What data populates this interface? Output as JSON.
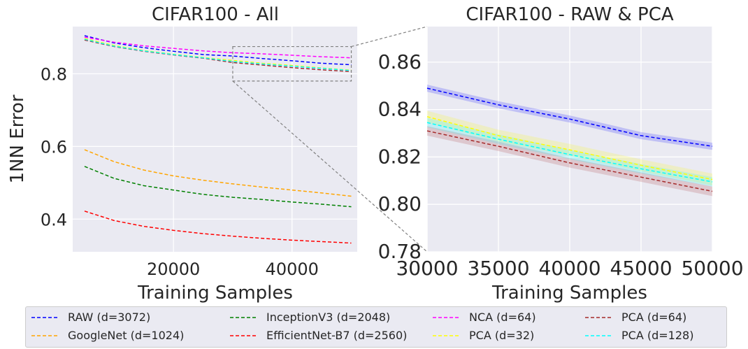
{
  "chart_data": [
    {
      "type": "line",
      "title": "CIFAR100 - All",
      "xlabel": "Training Samples",
      "ylabel": "1NN Error",
      "xlim": [
        3000,
        51000
      ],
      "ylim": [
        0.31,
        0.93
      ],
      "xticks": [
        20000,
        40000
      ],
      "yticks": [
        0.4,
        0.6,
        0.8
      ],
      "ytick_labels": [
        "0.4",
        "0.6",
        "0.8"
      ],
      "grid": true,
      "series": [
        {
          "name": "RAW (d=3072)",
          "color": "#0000ff",
          "x": [
            5000,
            10000,
            15000,
            20000,
            25000,
            30000,
            35000,
            40000,
            45000,
            50000
          ],
          "y": [
            0.905,
            0.885,
            0.872,
            0.862,
            0.853,
            0.849,
            0.842,
            0.836,
            0.829,
            0.825
          ]
        },
        {
          "name": "GoogleNet (d=1024)",
          "color": "#ffa500",
          "x": [
            5000,
            10000,
            15000,
            20000,
            25000,
            30000,
            35000,
            40000,
            45000,
            50000
          ],
          "y": [
            0.591,
            0.558,
            0.535,
            0.519,
            0.507,
            0.497,
            0.488,
            0.48,
            0.472,
            0.463
          ]
        },
        {
          "name": "InceptionV3 (d=2048)",
          "color": "#008000",
          "x": [
            5000,
            10000,
            15000,
            20000,
            25000,
            30000,
            35000,
            40000,
            45000,
            50000
          ],
          "y": [
            0.545,
            0.512,
            0.492,
            0.48,
            0.468,
            0.46,
            0.454,
            0.447,
            0.441,
            0.434
          ]
        },
        {
          "name": "EfficientNet-B7 (d=2560)",
          "color": "#ff0000",
          "x": [
            5000,
            10000,
            15000,
            20000,
            25000,
            30000,
            35000,
            40000,
            45000,
            50000
          ],
          "y": [
            0.422,
            0.396,
            0.38,
            0.369,
            0.36,
            0.353,
            0.347,
            0.342,
            0.338,
            0.334
          ]
        },
        {
          "name": "NCA (d=64)",
          "color": "#ff00ff",
          "x": [
            5000,
            10000,
            15000,
            20000,
            25000,
            30000,
            35000,
            40000,
            45000,
            50000
          ],
          "y": [
            0.901,
            0.887,
            0.877,
            0.87,
            0.863,
            0.858,
            0.855,
            0.851,
            0.847,
            0.844
          ]
        },
        {
          "name": "PCA (d=32)",
          "color": "#ffff00",
          "x": [
            5000,
            10000,
            15000,
            20000,
            25000,
            30000,
            35000,
            40000,
            45000,
            50000
          ],
          "y": [
            0.897,
            0.878,
            0.864,
            0.854,
            0.845,
            0.837,
            0.829,
            0.823,
            0.816,
            0.81
          ]
        },
        {
          "name": "PCA (d=64)",
          "color": "#a52a2a",
          "x": [
            5000,
            10000,
            15000,
            20000,
            25000,
            30000,
            35000,
            40000,
            45000,
            50000
          ],
          "y": [
            0.893,
            0.875,
            0.862,
            0.852,
            0.843,
            0.831,
            0.824,
            0.817,
            0.811,
            0.806
          ]
        },
        {
          "name": "PCA (d=128)",
          "color": "#00ffff",
          "x": [
            5000,
            10000,
            15000,
            20000,
            25000,
            30000,
            35000,
            40000,
            45000,
            50000
          ],
          "y": [
            0.895,
            0.876,
            0.863,
            0.853,
            0.844,
            0.834,
            0.827,
            0.821,
            0.815,
            0.809
          ]
        }
      ],
      "annotations": [
        {
          "type": "zoom-box",
          "x": [
            30000,
            50000
          ],
          "y": [
            0.78,
            0.875
          ]
        }
      ]
    },
    {
      "type": "line",
      "title": "CIFAR100 - RAW & PCA",
      "xlabel": "Training Samples",
      "ylabel": "",
      "xlim": [
        30000,
        50000
      ],
      "ylim": [
        0.78,
        0.875
      ],
      "xticks": [
        30000,
        35000,
        40000,
        45000,
        50000
      ],
      "yticks": [
        0.78,
        0.8,
        0.82,
        0.84,
        0.86
      ],
      "ytick_labels": [
        "0.78",
        "0.80",
        "0.82",
        "0.84",
        "0.86"
      ],
      "grid": true,
      "series": [
        {
          "name": "RAW (d=3072)",
          "color": "#0000ff",
          "band": 0.0015,
          "x": [
            30000,
            35000,
            40000,
            45000,
            50000
          ],
          "y": [
            0.849,
            0.842,
            0.836,
            0.829,
            0.8245
          ]
        },
        {
          "name": "PCA (d=32)",
          "color": "#ffff00",
          "band": 0.0025,
          "x": [
            30000,
            35000,
            40000,
            45000,
            50000
          ],
          "y": [
            0.837,
            0.829,
            0.823,
            0.8165,
            0.8105
          ]
        },
        {
          "name": "PCA (d=64)",
          "color": "#a52a2a",
          "band": 0.002,
          "x": [
            30000,
            35000,
            40000,
            45000,
            50000
          ],
          "y": [
            0.831,
            0.8245,
            0.8175,
            0.8115,
            0.8055
          ]
        },
        {
          "name": "PCA (d=128)",
          "color": "#00ffff",
          "band": 0.002,
          "x": [
            30000,
            35000,
            40000,
            45000,
            50000
          ],
          "y": [
            0.8345,
            0.8275,
            0.821,
            0.815,
            0.8095
          ]
        }
      ]
    }
  ],
  "legend": {
    "placement": "bottom",
    "entries": [
      {
        "label": "RAW (d=3072)",
        "color": "#0000ff"
      },
      {
        "label": "InceptionV3 (d=2048)",
        "color": "#008000"
      },
      {
        "label": "NCA (d=64)",
        "color": "#ff00ff"
      },
      {
        "label": "PCA (d=64)",
        "color": "#a52a2a"
      },
      {
        "label": "GoogleNet (d=1024)",
        "color": "#ffa500"
      },
      {
        "label": "EfficientNet-B7 (d=2560)",
        "color": "#ff0000"
      },
      {
        "label": "PCA (d=32)",
        "color": "#ffff00"
      },
      {
        "label": "PCA (d=128)",
        "color": "#00ffff"
      }
    ]
  }
}
